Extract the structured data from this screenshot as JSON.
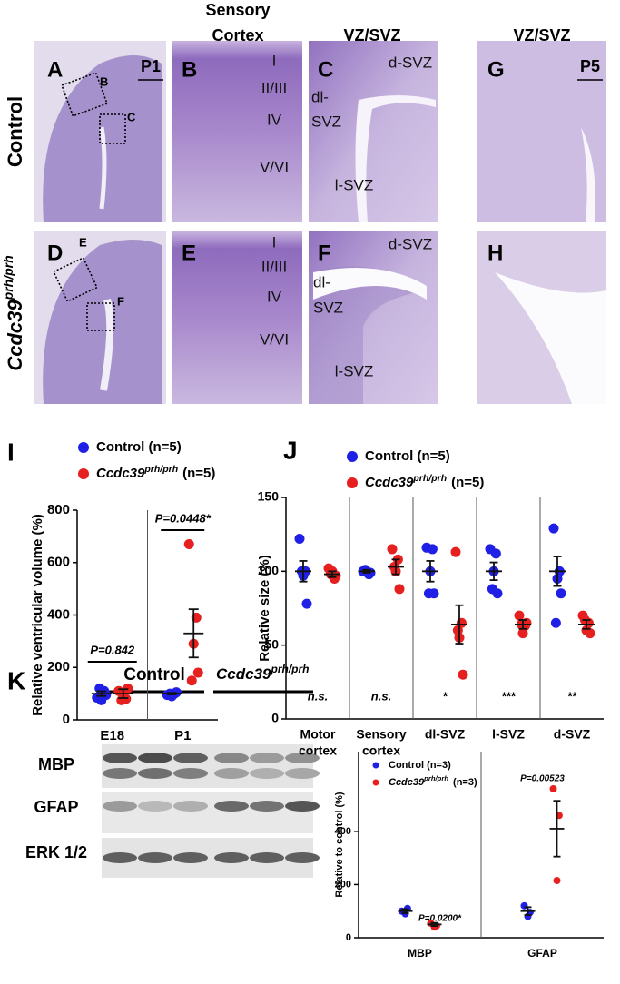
{
  "histology": {
    "column_headers": [
      [
        "Sensory",
        "Cortex"
      ],
      "VZ/SVZ",
      "VZ/SVZ"
    ],
    "row_labels": [
      "Control",
      {
        "main": "Ccdc39",
        "sup": "prh/prh"
      }
    ],
    "panels": [
      {
        "letter": "A",
        "scale": "P1",
        "boxes": [
          "B",
          "C"
        ]
      },
      {
        "letter": "B",
        "layers": [
          "I",
          "II/III",
          "IV",
          "V/VI"
        ]
      },
      {
        "letter": "C",
        "regions": [
          "d-SVZ",
          "dl-",
          "SVZ",
          "l-SVZ"
        ]
      },
      {
        "letter": "G",
        "scale": "P5"
      },
      {
        "letter": "D",
        "boxes": [
          "E",
          "F"
        ]
      },
      {
        "letter": "E",
        "layers": [
          "I",
          "II/III",
          "IV",
          "V/VI"
        ]
      },
      {
        "letter": "F",
        "regions": [
          "d-SVZ",
          "dl-",
          "SVZ",
          "l-SVZ"
        ]
      },
      {
        "letter": "H"
      }
    ]
  },
  "chart_data": [
    {
      "type": "strip",
      "panel_letter": "I",
      "y_label": "Relative ventricular volume (%)",
      "categories": [
        [
          "E18"
        ],
        [
          "P1"
        ]
      ],
      "ylim": [
        0,
        800
      ],
      "yticks": [
        0,
        200,
        400,
        600,
        800
      ],
      "annotations": [
        "P=0.842",
        "P=0.0448*"
      ],
      "series": [
        {
          "name": "Control (n=5)",
          "color": "#1f1fe6",
          "points": [
            [
              85,
              110,
              75,
              95,
              120
            ],
            [
              95,
              100,
              90,
              105,
              100
            ]
          ],
          "means": [
            100,
            100
          ],
          "sems": [
            9,
            3
          ]
        },
        {
          "name": "Ccdc39",
          "name_superscript": "prh/prh",
          "name_suffix": "(n=5)",
          "color": "#e61f1f",
          "points": [
            [
              110,
              80,
              95,
              120,
              75
            ],
            [
              670,
              390,
              290,
              180,
              150
            ]
          ],
          "means": [
            100,
            330
          ],
          "sems": [
            17,
            92
          ]
        }
      ]
    },
    {
      "type": "strip",
      "panel_letter": "J",
      "y_label": "Relative size (%)",
      "categories": [
        [
          "Motor",
          "cortex"
        ],
        [
          "Sensory",
          "cortex"
        ],
        [
          "dl-SVZ"
        ],
        [
          "l-SVZ"
        ],
        [
          "d-SVZ"
        ]
      ],
      "ylim": [
        0,
        150
      ],
      "yticks": [
        0,
        50,
        100,
        150
      ],
      "annotations": [
        "n.s.",
        "n.s.",
        "*",
        "***",
        "**"
      ],
      "series": [
        {
          "name": "Control (n=5)",
          "color": "#1f1fe6",
          "points": [
            [
              122,
              100,
              97,
              78,
              100
            ],
            [
              100,
              98,
              100,
              99,
              101
            ],
            [
              116,
              115,
              100,
              85,
              85
            ],
            [
              115,
              112,
              100,
              85,
              88
            ],
            [
              129,
              100,
              95,
              85,
              65
            ]
          ],
          "means": [
            100,
            100,
            100,
            100,
            100
          ],
          "sems": [
            7,
            1,
            7,
            6,
            10
          ]
        },
        {
          "name": "Ccdc39",
          "name_superscript": "prh/prh",
          "name_suffix": "(n=5)",
          "color": "#e61f1f",
          "points": [
            [
              102,
              95,
              100,
              97,
              98
            ],
            [
              115,
              108,
              100,
              88,
              103
            ],
            [
              113,
              65,
              55,
              30,
              60
            ],
            [
              70,
              63,
              58,
              65,
              64
            ],
            [
              70,
              65,
              60,
              58,
              67
            ]
          ],
          "means": [
            98,
            103,
            64,
            64,
            64
          ],
          "sems": [
            2,
            5,
            13,
            3,
            3
          ]
        }
      ]
    },
    {
      "type": "strip",
      "y_label": "Relative to control (%)",
      "categories": [
        [
          "MBP"
        ],
        [
          "GFAP"
        ]
      ],
      "ylim": [
        0,
        700
      ],
      "yticks": [
        0,
        200,
        400
      ],
      "annotations": [
        "P=0.0200*",
        "P=0.00523"
      ],
      "series": [
        {
          "name": "Control (n=3)",
          "color": "#1f1fe6",
          "points": [
            [
              100,
              110,
              90
            ],
            [
              120,
              95,
              80
            ]
          ],
          "means": [
            100,
            100
          ],
          "sems": [
            8,
            15
          ]
        },
        {
          "name": "Ccdc39",
          "name_superscript": "prh/prh",
          "name_suffix": "(n=3)",
          "color": "#e61f1f",
          "points": [
            [
              55,
              45,
              40
            ],
            [
              560,
              460,
              215
            ]
          ],
          "means": [
            50,
            410
          ],
          "sems": [
            6,
            105
          ]
        }
      ]
    }
  ],
  "blot": {
    "panel_letter": "K",
    "groups": [
      "Control",
      {
        "main": "Ccdc39",
        "sup": "prh/prh"
      }
    ],
    "rows": [
      "MBP",
      "GFAP",
      "ERK 1/2"
    ]
  }
}
